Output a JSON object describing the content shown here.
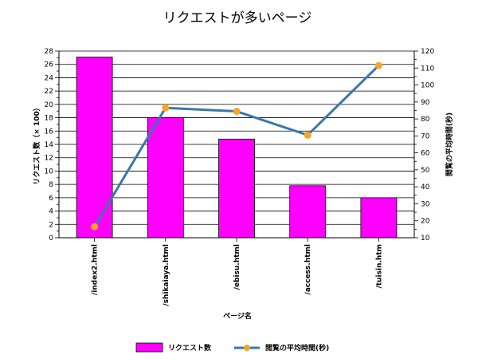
{
  "chart_data": {
    "type": "bar",
    "title": "リクエストが多いページ",
    "xlabel": "ページ名",
    "ylabel_left": "リクエスト数（× 100）",
    "ylabel_right": "閲覧の平均時間(秒)",
    "categories": [
      "/index2.html",
      "/shikaiaya.html",
      "/ebisu.html",
      "/access.html",
      "/tuisin.htm"
    ],
    "series": [
      {
        "name": "リクエスト数",
        "type": "bar",
        "axis": "left",
        "values": [
          27.1,
          18.0,
          14.8,
          7.8,
          6.0
        ],
        "color": "#ff00ff"
      },
      {
        "name": "閲覧の平均時間(秒)",
        "type": "line",
        "axis": "right",
        "values": [
          16.5,
          86.5,
          84.5,
          70.5,
          111.5
        ],
        "color": "#3a78a8",
        "marker_color": "#f5a623"
      }
    ],
    "ylim_left": [
      0,
      28
    ],
    "yticks_left": [
      0,
      2,
      4,
      6,
      8,
      10,
      12,
      14,
      16,
      18,
      20,
      22,
      24,
      26,
      28
    ],
    "ylim_right": [
      10,
      120
    ],
    "yticks_right": [
      10,
      20,
      30,
      40,
      50,
      60,
      70,
      80,
      90,
      100,
      110,
      120
    ],
    "grid": true,
    "legend_position": "bottom"
  }
}
